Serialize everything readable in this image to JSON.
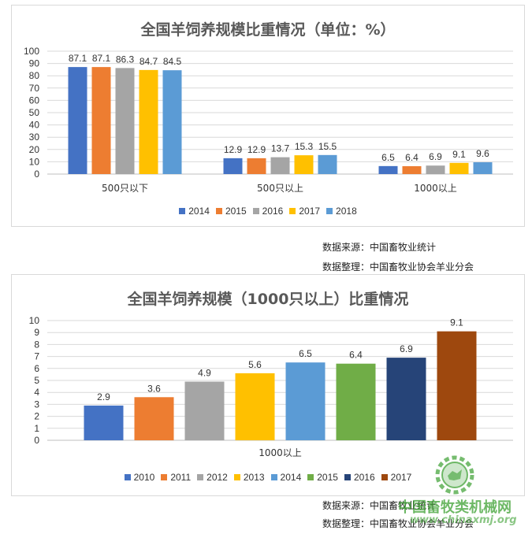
{
  "chart_data": [
    {
      "type": "bar",
      "title": "全国羊饲养规模比重情况（单位：%）",
      "categories": [
        "500只以下",
        "500只以上",
        "1000以上"
      ],
      "series": [
        {
          "name": "2014",
          "color": "#4472C4",
          "values": [
            87.1,
            12.9,
            6.5
          ]
        },
        {
          "name": "2015",
          "color": "#ED7D31",
          "values": [
            87.1,
            12.9,
            6.4
          ]
        },
        {
          "name": "2016",
          "color": "#A5A5A5",
          "values": [
            86.3,
            13.7,
            6.9
          ]
        },
        {
          "name": "2017",
          "color": "#FFC000",
          "values": [
            84.7,
            15.3,
            9.1
          ]
        },
        {
          "name": "2018",
          "color": "#5B9BD5",
          "values": [
            84.5,
            15.5,
            9.6
          ]
        }
      ],
      "ylim": [
        0,
        100
      ],
      "yticks": [
        0,
        10,
        20,
        30,
        40,
        50,
        60,
        70,
        80,
        90,
        100
      ],
      "grid": true,
      "legend": "bottom"
    },
    {
      "type": "bar",
      "title": "全国羊饲养规模（1000只以上）比重情况",
      "categories": [
        "1000以上"
      ],
      "series": [
        {
          "name": "2010",
          "color": "#4472C4",
          "values": [
            2.9
          ]
        },
        {
          "name": "2011",
          "color": "#ED7D31",
          "values": [
            3.6
          ]
        },
        {
          "name": "2012",
          "color": "#A5A5A5",
          "values": [
            4.9
          ]
        },
        {
          "name": "2013",
          "color": "#FFC000",
          "values": [
            5.6
          ]
        },
        {
          "name": "2014",
          "color": "#5B9BD5",
          "values": [
            6.5
          ]
        },
        {
          "name": "2015",
          "color": "#70AD47",
          "values": [
            6.4
          ]
        },
        {
          "name": "2016",
          "color": "#264478",
          "values": [
            6.9
          ]
        },
        {
          "name": "2017",
          "color": "#9E480E",
          "values": [
            9.1
          ]
        }
      ],
      "ylim": [
        0,
        10
      ],
      "yticks": [
        0,
        1,
        2,
        3,
        4,
        5,
        6,
        7,
        8,
        9,
        10
      ],
      "grid": true,
      "legend": "bottom"
    }
  ],
  "notes": {
    "chart1_source": "数据来源：中国畜牧业统计",
    "chart1_compiler": "数据整理：中国畜牧业协会羊业分会",
    "chart2_source": "数据来源：中国畜牧业统计",
    "chart2_compiler": "数据整理：中国畜牧业协会羊业分会"
  },
  "watermark": {
    "name": "中国畜牧类机械网",
    "url": "www.chinaxmj.org"
  }
}
